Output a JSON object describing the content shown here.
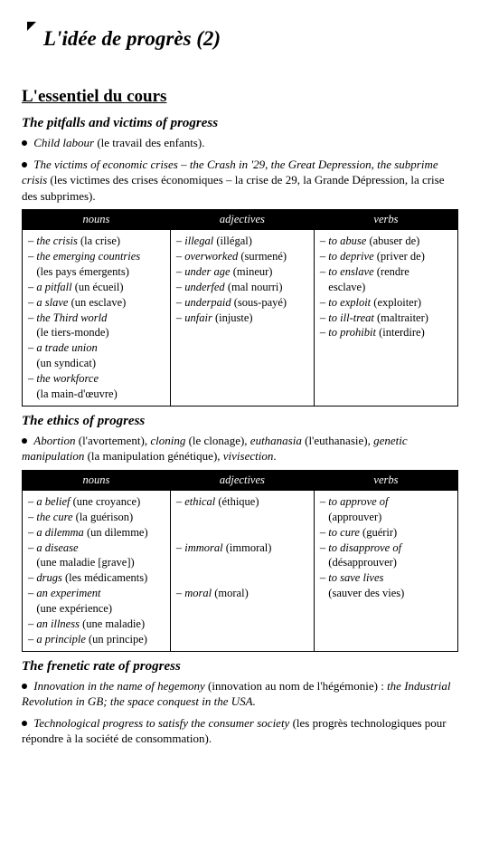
{
  "chapter_title": "L'idée de progrès (2)",
  "section_heading": "L'essentiel du cours",
  "blocks": [
    {
      "subheading": "The pitfalls and victims of progress",
      "paragraphs": [
        [
          {
            "t": "Child labour",
            "i": true
          },
          {
            "t": " (le travail des enfants).",
            "i": false
          }
        ],
        [
          {
            "t": "The victims of economic crises – the Crash in '29, the Great Depression, the subprime crisis",
            "i": true
          },
          {
            "t": " (les victimes des crises économiques – la crise de 29, la Grande Dépression, la crise des subprimes).",
            "i": false
          }
        ]
      ],
      "table": {
        "headers": [
          "nouns",
          "adjectives",
          "verbs"
        ],
        "cells": [
          [
            {
              "t": "– ",
              "i": false
            },
            {
              "t": "the crisis",
              "i": true
            },
            {
              "t": " (la crise)\n",
              "i": false
            },
            {
              "t": "– ",
              "i": false
            },
            {
              "t": "the emerging countries",
              "i": true
            },
            {
              "t": "\n   (les pays émergents)\n",
              "i": false
            },
            {
              "t": "– ",
              "i": false
            },
            {
              "t": "a pitfall",
              "i": true
            },
            {
              "t": " (un écueil)\n",
              "i": false
            },
            {
              "t": "– ",
              "i": false
            },
            {
              "t": "a slave",
              "i": true
            },
            {
              "t": " (un esclave)\n",
              "i": false
            },
            {
              "t": "– ",
              "i": false
            },
            {
              "t": "the Third world",
              "i": true
            },
            {
              "t": "\n   (le tiers-monde)\n",
              "i": false
            },
            {
              "t": "– ",
              "i": false
            },
            {
              "t": "a trade union",
              "i": true
            },
            {
              "t": "\n   (un syndicat)\n",
              "i": false
            },
            {
              "t": "– ",
              "i": false
            },
            {
              "t": "the workforce",
              "i": true
            },
            {
              "t": "\n   (la main-d'œuvre)",
              "i": false
            }
          ],
          [
            {
              "t": "– ",
              "i": false
            },
            {
              "t": "illegal",
              "i": true
            },
            {
              "t": " (illégal)\n",
              "i": false
            },
            {
              "t": "– ",
              "i": false
            },
            {
              "t": "overworked",
              "i": true
            },
            {
              "t": " (surmené)\n",
              "i": false
            },
            {
              "t": "– ",
              "i": false
            },
            {
              "t": "under age",
              "i": true
            },
            {
              "t": " (mineur)\n",
              "i": false
            },
            {
              "t": "– ",
              "i": false
            },
            {
              "t": "underfed",
              "i": true
            },
            {
              "t": " (mal nourri)\n",
              "i": false
            },
            {
              "t": "– ",
              "i": false
            },
            {
              "t": "underpaid",
              "i": true
            },
            {
              "t": " (sous-payé)\n",
              "i": false
            },
            {
              "t": "– ",
              "i": false
            },
            {
              "t": "unfair",
              "i": true
            },
            {
              "t": " (injuste)",
              "i": false
            }
          ],
          [
            {
              "t": "– ",
              "i": false
            },
            {
              "t": "to abuse",
              "i": true
            },
            {
              "t": " (abuser de)\n",
              "i": false
            },
            {
              "t": "– ",
              "i": false
            },
            {
              "t": "to deprive",
              "i": true
            },
            {
              "t": " (priver de)\n",
              "i": false
            },
            {
              "t": "– ",
              "i": false
            },
            {
              "t": "to enslave",
              "i": true
            },
            {
              "t": " (rendre\n   esclave)\n",
              "i": false
            },
            {
              "t": "– ",
              "i": false
            },
            {
              "t": "to exploit",
              "i": true
            },
            {
              "t": " (exploiter)\n",
              "i": false
            },
            {
              "t": "– ",
              "i": false
            },
            {
              "t": "to ill-treat",
              "i": true
            },
            {
              "t": " (maltraiter)\n",
              "i": false
            },
            {
              "t": "– ",
              "i": false
            },
            {
              "t": "to prohibit",
              "i": true
            },
            {
              "t": " (interdire)",
              "i": false
            }
          ]
        ]
      }
    },
    {
      "subheading": "The ethics of progress",
      "paragraphs": [
        [
          {
            "t": "Abortion",
            "i": true
          },
          {
            "t": " (l'avortement), ",
            "i": false
          },
          {
            "t": "cloning",
            "i": true
          },
          {
            "t": " (le clonage), ",
            "i": false
          },
          {
            "t": "euthanasia",
            "i": true
          },
          {
            "t": " (l'euthanasie), ",
            "i": false
          },
          {
            "t": "genetic manipulation",
            "i": true
          },
          {
            "t": " (la manipulation génétique), ",
            "i": false
          },
          {
            "t": "vivisection",
            "i": true
          },
          {
            "t": ".",
            "i": false
          }
        ]
      ],
      "table": {
        "headers": [
          "nouns",
          "adjectives",
          "verbs"
        ],
        "cells": [
          [
            {
              "t": "– ",
              "i": false
            },
            {
              "t": "a belief",
              "i": true
            },
            {
              "t": " (une croyance)\n",
              "i": false
            },
            {
              "t": "– ",
              "i": false
            },
            {
              "t": "the cure",
              "i": true
            },
            {
              "t": " (la guérison)\n",
              "i": false
            },
            {
              "t": "– ",
              "i": false
            },
            {
              "t": "a dilemma",
              "i": true
            },
            {
              "t": " (un dilemme)\n",
              "i": false
            },
            {
              "t": "– ",
              "i": false
            },
            {
              "t": "a disease",
              "i": true
            },
            {
              "t": "\n   (une maladie [grave])\n",
              "i": false
            },
            {
              "t": "– ",
              "i": false
            },
            {
              "t": "drugs",
              "i": true
            },
            {
              "t": " (les médicaments)\n",
              "i": false
            },
            {
              "t": "– ",
              "i": false
            },
            {
              "t": "an experiment",
              "i": true
            },
            {
              "t": "\n   (une expérience)\n",
              "i": false
            },
            {
              "t": "– ",
              "i": false
            },
            {
              "t": "an illness",
              "i": true
            },
            {
              "t": " (une maladie)\n",
              "i": false
            },
            {
              "t": "– ",
              "i": false
            },
            {
              "t": "a principle",
              "i": true
            },
            {
              "t": " (un principe)",
              "i": false
            }
          ],
          [
            {
              "t": "– ",
              "i": false
            },
            {
              "t": "ethical",
              "i": true
            },
            {
              "t": " (éthique)\n\n\n",
              "i": false
            },
            {
              "t": "– ",
              "i": false
            },
            {
              "t": "immoral",
              "i": true
            },
            {
              "t": " (immoral)\n\n\n",
              "i": false
            },
            {
              "t": "– ",
              "i": false
            },
            {
              "t": "moral",
              "i": true
            },
            {
              "t": " (moral)",
              "i": false
            }
          ],
          [
            {
              "t": "– ",
              "i": false
            },
            {
              "t": "to approve of",
              "i": true
            },
            {
              "t": "\n   (approuver)\n",
              "i": false
            },
            {
              "t": "– ",
              "i": false
            },
            {
              "t": "to cure",
              "i": true
            },
            {
              "t": " (guérir)\n",
              "i": false
            },
            {
              "t": "– ",
              "i": false
            },
            {
              "t": "to disapprove of",
              "i": true
            },
            {
              "t": "\n   (désapprouver)\n",
              "i": false
            },
            {
              "t": "– ",
              "i": false
            },
            {
              "t": "to save lives",
              "i": true
            },
            {
              "t": "\n   (sauver des vies)",
              "i": false
            }
          ]
        ]
      }
    },
    {
      "subheading": "The frenetic rate of progress",
      "paragraphs": [
        [
          {
            "t": "Innovation in the name of hegemony",
            "i": true
          },
          {
            "t": " (innovation au nom de l'hégémonie) : ",
            "i": false
          },
          {
            "t": "the Industrial Revolution in GB; the space conquest in the USA.",
            "i": true
          }
        ],
        [
          {
            "t": "Technological progress to satisfy the consumer society",
            "i": true
          },
          {
            "t": " (les progrès technolo­giques pour répondre à la société de consommation).",
            "i": false
          }
        ]
      ]
    }
  ]
}
